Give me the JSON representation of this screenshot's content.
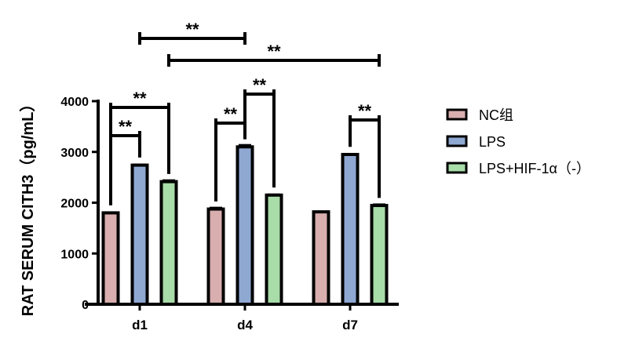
{
  "chart_data": {
    "type": "bar",
    "ylabel": "RAT SERUM CITH3（pg/mL）",
    "xlabel": "",
    "ylim": [
      0,
      4000
    ],
    "yticks": [
      "0",
      "1000",
      "2000",
      "3000",
      "4000"
    ],
    "categories": [
      "d1",
      "d4",
      "d7"
    ],
    "series": [
      {
        "name": "NC组",
        "color": "#d9aeae",
        "values": [
          1800,
          1875,
          1820
        ],
        "errors": [
          15,
          30,
          10
        ]
      },
      {
        "name": "LPS",
        "color": "#8ea8d2",
        "values": [
          2740,
          3100,
          2950
        ],
        "errors": [
          15,
          40,
          15
        ]
      },
      {
        "name": "LPS+HIF-1α（-）",
        "color": "#a8dca8",
        "values": [
          2415,
          2150,
          1945
        ],
        "errors": [
          30,
          15,
          25
        ]
      }
    ],
    "legend_position": "right",
    "grid": false,
    "significance": [
      {
        "from": [
          0,
          0
        ],
        "to": [
          0,
          1
        ],
        "label": "**"
      },
      {
        "from": [
          0,
          0
        ],
        "to": [
          0,
          2
        ],
        "label": "**"
      },
      {
        "from": [
          1,
          0
        ],
        "to": [
          1,
          1
        ],
        "label": "**"
      },
      {
        "from": [
          1,
          1
        ],
        "to": [
          1,
          2
        ],
        "label": "**"
      },
      {
        "from": [
          2,
          1
        ],
        "to": [
          2,
          2
        ],
        "label": "**"
      },
      {
        "from": [
          0,
          1
        ],
        "to": [
          1,
          1
        ],
        "label": "**"
      },
      {
        "from": [
          0,
          2
        ],
        "to": [
          2,
          2
        ],
        "label": "**"
      }
    ]
  }
}
